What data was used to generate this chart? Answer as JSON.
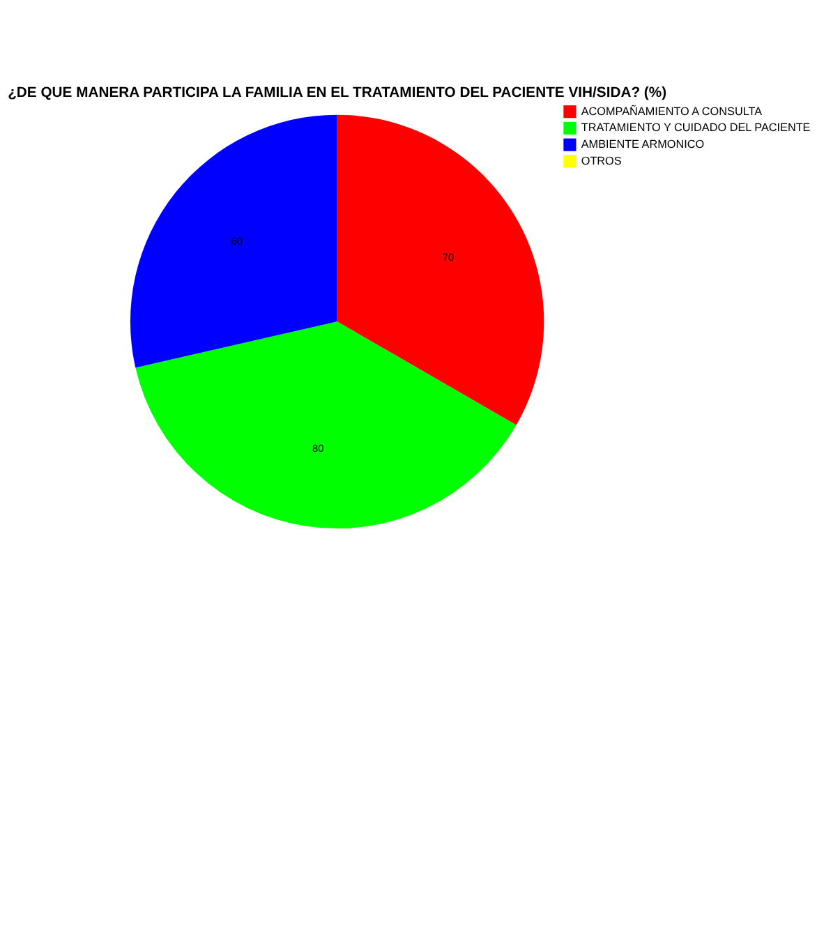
{
  "chart_data": {
    "type": "pie",
    "title": "¿DE QUE MANERA PARTICIPA LA FAMILIA EN EL TRATAMIENTO DEL PACIENTE VIH/SIDA? (%)",
    "categories": [
      "ACOMPAÑAMIENTO A CONSULTA",
      "TRATAMIENTO Y CUIDADO DEL PACIENTE",
      "AMBIENTE ARMONICO",
      "OTROS"
    ],
    "values": [
      70,
      80,
      60,
      0
    ],
    "colors": [
      "#ff0000",
      "#00ff00",
      "#0000ff",
      "#ffff00"
    ],
    "value_labels": [
      "70",
      "80",
      "60",
      null
    ],
    "legend": "right"
  }
}
